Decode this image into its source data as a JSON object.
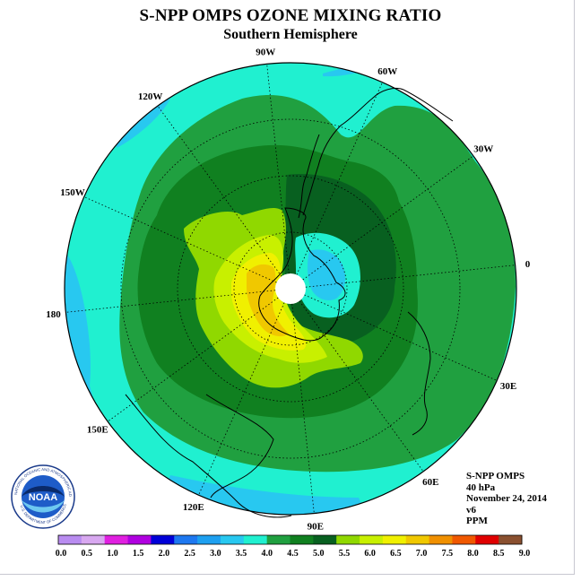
{
  "title": "S-NPP OMPS OZONE MIXING RATIO",
  "subtitle": "Southern Hemisphere",
  "longitude_labels": [
    {
      "text": "90W",
      "lon": -90
    },
    {
      "text": "60W",
      "lon": -60
    },
    {
      "text": "30W",
      "lon": -30
    },
    {
      "text": "0",
      "lon": 0
    },
    {
      "text": "30E",
      "lon": 30
    },
    {
      "text": "60E",
      "lon": 60
    },
    {
      "text": "90E",
      "lon": 90
    },
    {
      "text": "120E",
      "lon": 120
    },
    {
      "text": "150E",
      "lon": 150
    },
    {
      "text": "180",
      "lon": 180
    },
    {
      "text": "150W",
      "lon": -150
    },
    {
      "text": "120W",
      "lon": -120
    }
  ],
  "info": {
    "instrument": "S-NPP OMPS",
    "level": "40 hPa",
    "date": "November 24, 2014",
    "version": "v6",
    "units": "PPM"
  },
  "colorbar": {
    "labels": [
      "0.0",
      "0.5",
      "1.0",
      "1.5",
      "2.0",
      "2.5",
      "3.0",
      "3.5",
      "4.0",
      "4.5",
      "5.0",
      "5.5",
      "6.0",
      "6.5",
      "7.0",
      "7.5",
      "8.0",
      "8.5",
      "9.0"
    ],
    "colors": [
      "#b98cf0",
      "#d8a8f0",
      "#e020e0",
      "#b000e0",
      "#0000d8",
      "#1e78f0",
      "#1ea0f0",
      "#28c8f0",
      "#20f0d0",
      "#20a040",
      "#108020",
      "#086020",
      "#90d800",
      "#c8f000",
      "#f0f000",
      "#f0c800",
      "#f09000",
      "#f05800",
      "#e00000",
      "#8a5030"
    ]
  },
  "logo": {
    "text": "NOAA",
    "ring_text": "NATIONAL OCEANIC AND ATMOSPHERIC ADMINISTRATION",
    "ring_text_bottom": "U.S. DEPARTMENT OF COMMERCE"
  },
  "colors": {
    "bg_cyan": "#20f0d0",
    "green": "#20a040",
    "dark_green": "#108020",
    "darkest_green": "#086020",
    "light_blue": "#28c8f0",
    "lime": "#90d800",
    "yellow_green": "#c8f000",
    "yellow": "#f0f000",
    "orange": "#f0c800"
  }
}
